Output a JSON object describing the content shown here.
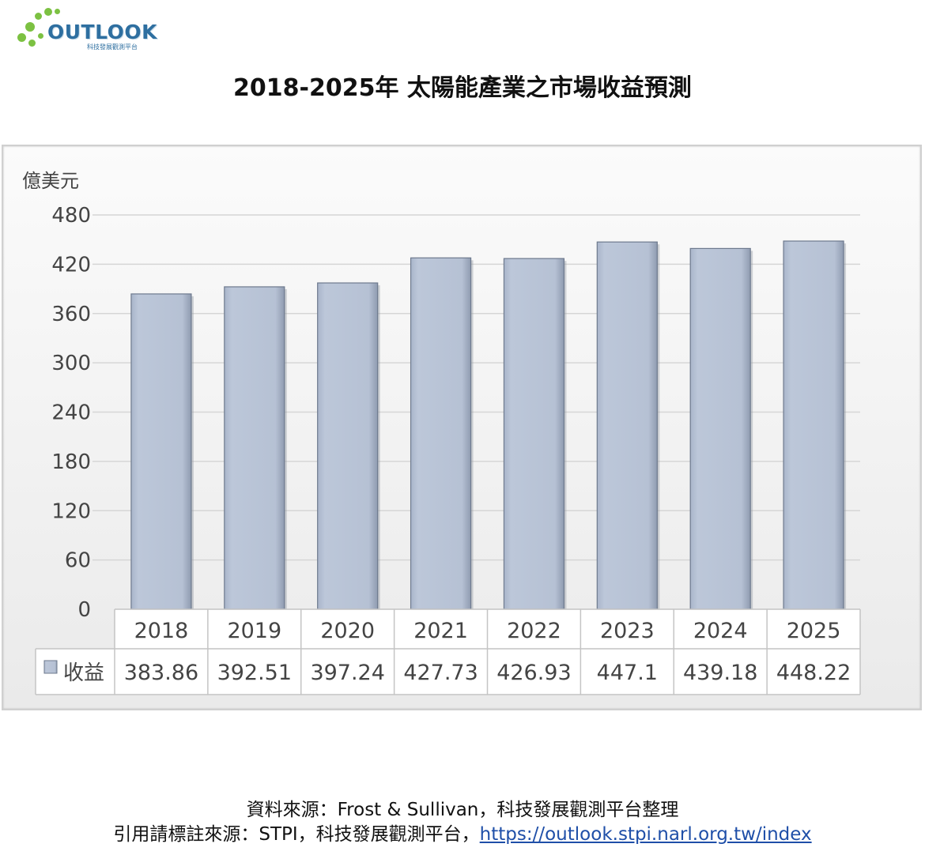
{
  "logo": {
    "text": "OUTLOOK",
    "subtext": "科技發展觀測平台",
    "brand_color": "#2e6fa0",
    "dot_color": "#7cc142"
  },
  "chart_data": {
    "type": "bar",
    "title": "2018-2025年 太陽能產業之市場收益預測",
    "ylabel": "億美元",
    "xlabel": "",
    "categories": [
      "2018",
      "2019",
      "2020",
      "2021",
      "2022",
      "2023",
      "2024",
      "2025"
    ],
    "series": [
      {
        "name": "收益",
        "values": [
          383.86,
          392.51,
          397.24,
          427.73,
          426.93,
          447.1,
          439.18,
          448.22
        ],
        "value_labels": [
          "383.86",
          "392.51",
          "397.24",
          "427.73",
          "426.93",
          "447.1",
          "439.18",
          "448.22"
        ],
        "color": "#b8c3d6"
      }
    ],
    "yticks": [
      0,
      60,
      120,
      180,
      240,
      300,
      360,
      420,
      480
    ],
    "ylim": [
      0,
      480
    ],
    "grid": true,
    "legend": "data-table"
  },
  "footer": {
    "line1": "資料來源：Frost & Sullivan，科技發展觀測平台整理",
    "line2_prefix": "引用請標註來源：STPI，科技發展觀測平台，",
    "link": "https://outlook.stpi.narl.org.tw/index"
  }
}
